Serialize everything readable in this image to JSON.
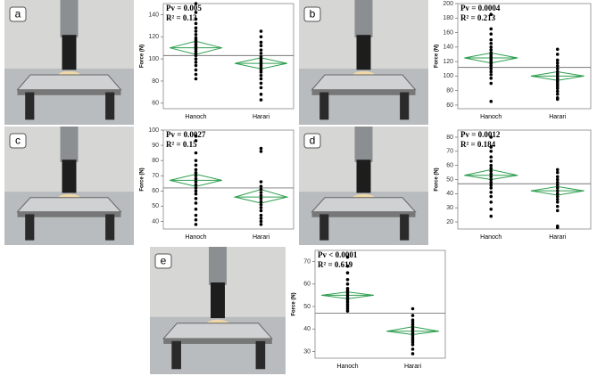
{
  "chart_data": [
    {
      "type": "strip",
      "panel": "a",
      "ylabel": "Force (N)",
      "annotations": [
        "Pv = 0.005",
        "R² = 0.13"
      ],
      "categories": [
        "Hanoch",
        "Harari"
      ],
      "ylim": [
        55,
        150
      ],
      "yticks": [
        60,
        80,
        100,
        120,
        140
      ],
      "point_color": "#000000",
      "diamond_color": "#2e9e4f",
      "mean_line_color": "#777777",
      "grand_mean": 103,
      "groups": [
        {
          "mean": 110,
          "ci": [
            104,
            116
          ],
          "values": [
            150,
            142,
            136,
            132,
            128,
            125,
            122,
            119,
            117,
            115,
            113,
            111,
            109,
            107,
            105,
            103,
            100,
            97,
            94,
            90,
            86,
            82
          ]
        },
        {
          "mean": 96,
          "ci": [
            91,
            101
          ],
          "values": [
            125,
            120,
            115,
            112,
            108,
            105,
            102,
            100,
            98,
            96,
            94,
            92,
            90,
            88,
            85,
            82,
            78,
            74,
            68,
            63
          ]
        }
      ]
    },
    {
      "type": "strip",
      "panel": "b",
      "ylabel": "Force (N)",
      "annotations": [
        "Pv = 0.0004",
        "R² = 0.213"
      ],
      "categories": [
        "Hanoch",
        "Harari"
      ],
      "ylim": [
        55,
        200
      ],
      "yticks": [
        60,
        80,
        100,
        120,
        140,
        160,
        180,
        200
      ],
      "point_color": "#000000",
      "diamond_color": "#2e9e4f",
      "mean_line_color": "#777777",
      "grand_mean": 112,
      "groups": [
        {
          "mean": 125,
          "ci": [
            118,
            132
          ],
          "values": [
            185,
            165,
            158,
            150,
            145,
            140,
            136,
            132,
            129,
            126,
            123,
            120,
            117,
            114,
            110,
            106,
            102,
            97,
            90,
            65
          ]
        },
        {
          "mean": 100,
          "ci": [
            94,
            106
          ],
          "values": [
            137,
            130,
            122,
            118,
            114,
            110,
            106,
            103,
            100,
            97,
            95,
            92,
            89,
            86,
            83,
            79,
            75,
            70,
            68
          ]
        }
      ]
    },
    {
      "type": "strip",
      "panel": "c",
      "ylabel": "Force (N)",
      "annotations": [
        "Pv = 0.0027",
        "R² = 0.15"
      ],
      "categories": [
        "Hanoch",
        "Harari"
      ],
      "ylim": [
        35,
        100
      ],
      "yticks": [
        40,
        50,
        60,
        70,
        80,
        90,
        100
      ],
      "point_color": "#000000",
      "diamond_color": "#2e9e4f",
      "mean_line_color": "#777777",
      "grand_mean": 62,
      "groups": [
        {
          "mean": 67,
          "ci": [
            63,
            71
          ],
          "values": [
            96,
            93,
            85,
            80,
            77,
            74,
            72,
            70,
            68,
            66,
            64,
            62,
            60,
            58,
            55,
            52,
            48,
            44,
            41,
            38
          ]
        },
        {
          "mean": 56,
          "ci": [
            52,
            61
          ],
          "values": [
            88,
            86,
            66,
            63,
            61,
            59,
            57,
            55,
            53,
            51,
            49,
            47,
            44,
            42,
            40,
            38
          ]
        }
      ]
    },
    {
      "type": "strip",
      "panel": "d",
      "ylabel": "Force (N)",
      "annotations": [
        "Pv = 0.0012",
        "R² = 0.184"
      ],
      "categories": [
        "Hanoch",
        "Harari"
      ],
      "ylim": [
        15,
        85
      ],
      "yticks": [
        20,
        30,
        40,
        50,
        60,
        70,
        80
      ],
      "point_color": "#000000",
      "diamond_color": "#2e9e4f",
      "mean_line_color": "#777777",
      "grand_mean": 47,
      "groups": [
        {
          "mean": 53,
          "ci": [
            50,
            57
          ],
          "values": [
            80,
            73,
            70,
            66,
            63,
            60,
            58,
            56,
            54,
            52,
            50,
            48,
            46,
            44,
            41,
            38,
            34,
            29,
            24
          ]
        },
        {
          "mean": 42,
          "ci": [
            39,
            45
          ],
          "values": [
            57,
            55,
            52,
            50,
            48,
            46,
            44,
            42,
            40,
            38,
            36,
            34,
            31,
            28,
            17,
            16
          ]
        }
      ]
    },
    {
      "type": "strip",
      "panel": "e",
      "ylabel": "Force (N)",
      "annotations": [
        "Pv < 0.0001",
        "R² = 0.619"
      ],
      "categories": [
        "Hanoch",
        "Harari"
      ],
      "ylim": [
        27,
        75
      ],
      "yticks": [
        30,
        40,
        50,
        60,
        70
      ],
      "point_color": "#000000",
      "diamond_color": "#2e9e4f",
      "mean_line_color": "#777777",
      "grand_mean": 47,
      "groups": [
        {
          "mean": 55,
          "ci": [
            53.5,
            56.5
          ],
          "values": [
            72,
            68,
            65,
            62,
            60,
            58,
            57,
            56,
            55,
            54,
            53,
            52,
            51,
            50,
            49,
            48
          ]
        },
        {
          "mean": 39,
          "ci": [
            37.5,
            41
          ],
          "values": [
            49,
            46,
            44,
            43,
            42,
            41,
            40,
            39,
            38,
            37,
            36,
            35,
            34,
            33,
            31,
            29
          ]
        }
      ]
    }
  ]
}
